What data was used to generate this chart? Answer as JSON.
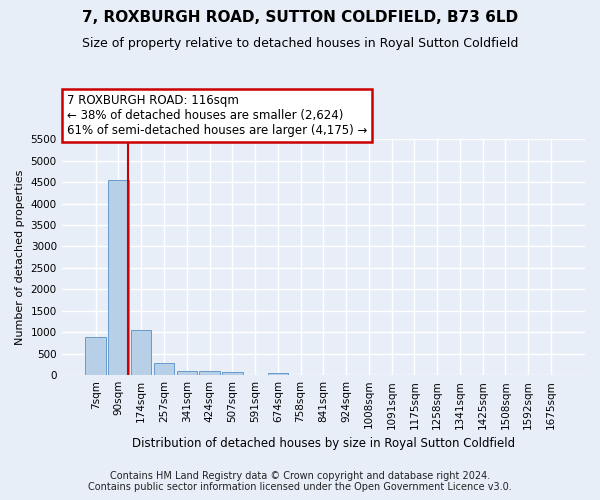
{
  "title": "7, ROXBURGH ROAD, SUTTON COLDFIELD, B73 6LD",
  "subtitle": "Size of property relative to detached houses in Royal Sutton Coldfield",
  "xlabel": "Distribution of detached houses by size in Royal Sutton Coldfield",
  "ylabel": "Number of detached properties",
  "footer_line1": "Contains HM Land Registry data © Crown copyright and database right 2024.",
  "footer_line2": "Contains public sector information licensed under the Open Government Licence v3.0.",
  "annotation_line1": "7 ROXBURGH ROAD: 116sqm",
  "annotation_line2": "← 38% of detached houses are smaller (2,624)",
  "annotation_line3": "61% of semi-detached houses are larger (4,175) →",
  "bar_labels": [
    "7sqm",
    "90sqm",
    "174sqm",
    "257sqm",
    "341sqm",
    "424sqm",
    "507sqm",
    "591sqm",
    "674sqm",
    "758sqm",
    "841sqm",
    "924sqm",
    "1008sqm",
    "1091sqm",
    "1175sqm",
    "1258sqm",
    "1341sqm",
    "1425sqm",
    "1508sqm",
    "1592sqm",
    "1675sqm"
  ],
  "bar_values": [
    880,
    4560,
    1060,
    290,
    100,
    90,
    60,
    0,
    55,
    0,
    0,
    0,
    0,
    0,
    0,
    0,
    0,
    0,
    0,
    0,
    0
  ],
  "bar_color": "#b8cfe8",
  "bar_edge_color": "#6699cc",
  "red_line_x": 1.42,
  "ylim_max": 5500,
  "yticks": [
    0,
    500,
    1000,
    1500,
    2000,
    2500,
    3000,
    3500,
    4000,
    4500,
    5000,
    5500
  ],
  "background_color": "#e8eef8",
  "plot_bg_color": "#e8eef8",
  "grid_color": "#ffffff",
  "annotation_box_facecolor": "#ffffff",
  "annotation_box_edgecolor": "#cc0000",
  "red_line_color": "#cc0000",
  "title_fontsize": 11,
  "subtitle_fontsize": 9,
  "ylabel_fontsize": 8,
  "xlabel_fontsize": 8.5,
  "tick_fontsize": 7.5,
  "footer_fontsize": 7,
  "annotation_fontsize": 8.5
}
